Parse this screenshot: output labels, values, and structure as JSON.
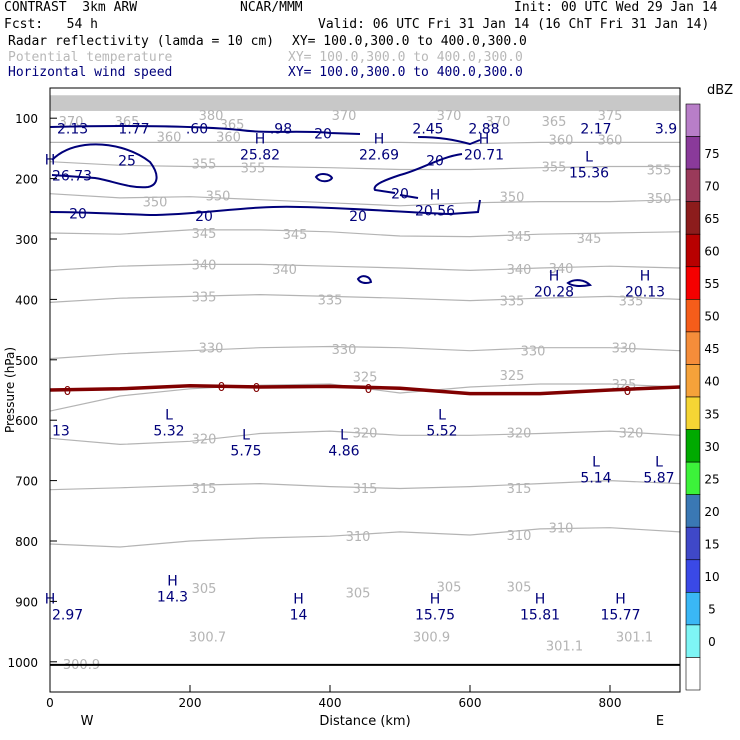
{
  "header": {
    "title_left": "CONTRAST  3km ARW",
    "title_mid": "NCAR/MMM",
    "init": "Init: 00 UTC Wed 29 Jan 14",
    "fcst": "Fcst:   54 h",
    "valid": "Valid: 06 UTC Fri 31 Jan 14 (16 ChT Fri 31 Jan 14)",
    "field1": "Radar reflectivity (lamda = 10 cm)",
    "field1_xy": "XY= 100.0,300.0 to 400.0,300.0",
    "field2": "Potential temperature",
    "field2_xy": "XY= 100.0,300.0 to 400.0,300.0",
    "field3": "Horizontal wind speed",
    "field3_xy": "XY= 100.0,300.0 to 400.0,300.0"
  },
  "colors": {
    "theta": "#b4b4b4",
    "wind": "#00007a",
    "freezing": "#800000",
    "terrain": "#000000"
  },
  "chart_data": {
    "type": "cross-section",
    "xlabel": "Distance (km)",
    "ylabel": "Pressure (hPa)",
    "xlim": [
      0,
      900
    ],
    "ylim": [
      1050,
      50
    ],
    "x_ticks": [
      0,
      200,
      400,
      600,
      800
    ],
    "y_ticks": [
      100,
      200,
      300,
      400,
      500,
      600,
      700,
      800,
      900,
      1000
    ],
    "west_label": "W",
    "east_label": "E",
    "colorbar": {
      "unit": "dBZ",
      "levels": [
        0,
        5,
        10,
        15,
        20,
        25,
        30,
        35,
        40,
        45,
        50,
        55,
        60,
        65,
        70,
        75
      ],
      "colors": [
        "#ffffff",
        "#7ef5f5",
        "#3ab7f5",
        "#3a49e6",
        "#3f48c8",
        "#3a78b4",
        "#3cf23a",
        "#00aa00",
        "#f5d534",
        "#f5a23a",
        "#f58d3a",
        "#f55d1a",
        "#f50000",
        "#b80000",
        "#8c1c1c",
        "#9a3a5a",
        "#8a3a9a",
        "#b87ec8"
      ]
    },
    "theta_contours": [
      {
        "label": "310",
        "p": [
          805,
          810,
          800,
          795,
          792,
          785,
          790,
          780,
          778,
          785
        ]
      },
      {
        "label": "315",
        "p": [
          715,
          712,
          708,
          705,
          710,
          713,
          710,
          705,
          700,
          705
        ]
      },
      {
        "label": "320",
        "p": [
          630,
          640,
          635,
          622,
          618,
          625,
          625,
          622,
          618,
          625
        ]
      },
      {
        "label": "325",
        "p": [
          585,
          560,
          548,
          542,
          540,
          555,
          545,
          540,
          540,
          545
        ]
      },
      {
        "label": "330",
        "p": [
          498,
          490,
          485,
          480,
          478,
          480,
          485,
          480,
          480,
          485
        ]
      },
      {
        "label": "335",
        "p": [
          405,
          398,
          395,
          392,
          395,
          398,
          402,
          398,
          395,
          400
        ]
      },
      {
        "label": "340",
        "p": [
          352,
          345,
          342,
          342,
          345,
          348,
          352,
          348,
          345,
          348
        ]
      },
      {
        "label": "345",
        "p": [
          290,
          292,
          285,
          285,
          288,
          295,
          296,
          292,
          290,
          288
        ]
      },
      {
        "label": "350",
        "p": [
          225,
          232,
          230,
          235,
          240,
          245,
          240,
          238,
          238,
          235
        ]
      },
      {
        "label": "355",
        "p": [
          172,
          178,
          180,
          180,
          182,
          185,
          185,
          182,
          180,
          180
        ]
      },
      {
        "label": "360",
        "p": [
          140,
          140,
          140,
          140,
          140,
          140,
          142,
          140,
          140,
          140
        ]
      }
    ],
    "theta_labels": [
      {
        "x": 30,
        "p": 105,
        "t": "370"
      },
      {
        "x": 110,
        "p": 105,
        "t": "365"
      },
      {
        "x": 230,
        "p": 95,
        "t": "380"
      },
      {
        "x": 260,
        "p": 110,
        "t": "365"
      },
      {
        "x": 420,
        "p": 95,
        "t": "370"
      },
      {
        "x": 570,
        "p": 95,
        "t": "370"
      },
      {
        "x": 640,
        "p": 105,
        "t": "370"
      },
      {
        "x": 720,
        "p": 105,
        "t": "365"
      },
      {
        "x": 800,
        "p": 95,
        "t": "375"
      },
      {
        "x": 170,
        "p": 130,
        "t": "360"
      },
      {
        "x": 255,
        "p": 130,
        "t": "360"
      },
      {
        "x": 730,
        "p": 135,
        "t": "360"
      },
      {
        "x": 800,
        "p": 135,
        "t": "360"
      },
      {
        "x": 220,
        "p": 175,
        "t": "355"
      },
      {
        "x": 290,
        "p": 182,
        "t": "355"
      },
      {
        "x": 720,
        "p": 180,
        "t": "355"
      },
      {
        "x": 870,
        "p": 185,
        "t": "355"
      },
      {
        "x": 150,
        "p": 238,
        "t": "350"
      },
      {
        "x": 240,
        "p": 228,
        "t": "350"
      },
      {
        "x": 660,
        "p": 230,
        "t": "350"
      },
      {
        "x": 870,
        "p": 232,
        "t": "350"
      },
      {
        "x": 220,
        "p": 290,
        "t": "345"
      },
      {
        "x": 350,
        "p": 292,
        "t": "345"
      },
      {
        "x": 670,
        "p": 295,
        "t": "345"
      },
      {
        "x": 770,
        "p": 298,
        "t": "345"
      },
      {
        "x": 220,
        "p": 342,
        "t": "340"
      },
      {
        "x": 335,
        "p": 350,
        "t": "340"
      },
      {
        "x": 670,
        "p": 350,
        "t": "340"
      },
      {
        "x": 730,
        "p": 348,
        "t": "340"
      },
      {
        "x": 220,
        "p": 395,
        "t": "335"
      },
      {
        "x": 400,
        "p": 400,
        "t": "335"
      },
      {
        "x": 660,
        "p": 402,
        "t": "335"
      },
      {
        "x": 830,
        "p": 402,
        "t": "335"
      },
      {
        "x": 230,
        "p": 480,
        "t": "330"
      },
      {
        "x": 420,
        "p": 482,
        "t": "330"
      },
      {
        "x": 690,
        "p": 485,
        "t": "330"
      },
      {
        "x": 820,
        "p": 480,
        "t": "330"
      },
      {
        "x": 450,
        "p": 528,
        "t": "325"
      },
      {
        "x": 660,
        "p": 525,
        "t": "325"
      },
      {
        "x": 820,
        "p": 540,
        "t": "325"
      },
      {
        "x": 220,
        "p": 630,
        "t": "320"
      },
      {
        "x": 450,
        "p": 620,
        "t": "320"
      },
      {
        "x": 670,
        "p": 620,
        "t": "320"
      },
      {
        "x": 830,
        "p": 620,
        "t": "320"
      },
      {
        "x": 220,
        "p": 712,
        "t": "315"
      },
      {
        "x": 450,
        "p": 712,
        "t": "315"
      },
      {
        "x": 670,
        "p": 712,
        "t": "315"
      },
      {
        "x": 440,
        "p": 792,
        "t": "310"
      },
      {
        "x": 670,
        "p": 790,
        "t": "310"
      },
      {
        "x": 730,
        "p": 778,
        "t": "310"
      },
      {
        "x": 220,
        "p": 878,
        "t": "305"
      },
      {
        "x": 440,
        "p": 885,
        "t": "305"
      },
      {
        "x": 570,
        "p": 875,
        "t": "305"
      },
      {
        "x": 670,
        "p": 875,
        "t": "305"
      }
    ],
    "wind_labels": [
      {
        "x": 110,
        "p": 170,
        "t": "25"
      },
      {
        "x": 390,
        "p": 125,
        "t": "20"
      },
      {
        "x": 550,
        "p": 170,
        "t": "20"
      },
      {
        "x": 500,
        "p": 225,
        "t": "20"
      },
      {
        "x": 40,
        "p": 258,
        "t": "20"
      },
      {
        "x": 220,
        "p": 262,
        "t": "20"
      },
      {
        "x": 440,
        "p": 262,
        "t": "20"
      }
    ],
    "wind_extrema": [
      {
        "x": 10,
        "p": 112,
        "t": "2.13",
        "type": ""
      },
      {
        "x": 120,
        "p": 112,
        "t": "1.77",
        "type": ""
      },
      {
        "x": 210,
        "p": 112,
        "t": ".60",
        "type": ""
      },
      {
        "x": 330,
        "p": 112,
        "t": ".98",
        "type": ""
      },
      {
        "x": 540,
        "p": 112,
        "t": "2.45",
        "type": ""
      },
      {
        "x": 620,
        "p": 112,
        "t": "2.88",
        "type": ""
      },
      {
        "x": 780,
        "p": 112,
        "t": "2.17",
        "type": ""
      },
      {
        "x": 880,
        "p": 112,
        "t": "3.9",
        "type": ""
      },
      {
        "x": 300,
        "p": 155,
        "t": "25.82",
        "type": "H"
      },
      {
        "x": 470,
        "p": 155,
        "t": "22.69",
        "type": "H"
      },
      {
        "x": 620,
        "p": 155,
        "t": "20.71",
        "type": "H"
      },
      {
        "x": 770,
        "p": 185,
        "t": "15.36",
        "type": "L"
      },
      {
        "x": 0,
        "p": 190,
        "t": "26.73",
        "type": "H"
      },
      {
        "x": 550,
        "p": 248,
        "t": "20.56",
        "type": "H"
      },
      {
        "x": 720,
        "p": 382,
        "t": "20.28",
        "type": "H"
      },
      {
        "x": 850,
        "p": 382,
        "t": "20.13",
        "type": "H"
      },
      {
        "x": 170,
        "p": 612,
        "t": "5.32",
        "type": "L"
      },
      {
        "x": 0,
        "p": 612,
        "t": "13",
        "type": ""
      },
      {
        "x": 280,
        "p": 645,
        "t": "5.75",
        "type": "L"
      },
      {
        "x": 420,
        "p": 645,
        "t": "4.86",
        "type": "L"
      },
      {
        "x": 560,
        "p": 612,
        "t": "5.52",
        "type": "L"
      },
      {
        "x": 780,
        "p": 690,
        "t": "5.14",
        "type": "L"
      },
      {
        "x": 870,
        "p": 690,
        "t": "5.87",
        "type": "L"
      },
      {
        "x": 175,
        "p": 887,
        "t": "14.3",
        "type": "H"
      },
      {
        "x": 0,
        "p": 917,
        "t": "2.97",
        "type": "H"
      },
      {
        "x": 355,
        "p": 917,
        "t": "14",
        "type": "H"
      },
      {
        "x": 550,
        "p": 917,
        "t": "15.75",
        "type": "H"
      },
      {
        "x": 700,
        "p": 917,
        "t": "15.81",
        "type": "H"
      },
      {
        "x": 815,
        "p": 917,
        "t": "15.77",
        "type": "H"
      }
    ],
    "theta_extrema": [
      {
        "x": 225,
        "p": 960,
        "t": "300.7"
      },
      {
        "x": 545,
        "p": 960,
        "t": "300.9"
      },
      {
        "x": 735,
        "p": 975,
        "t": "301.1"
      },
      {
        "x": 835,
        "p": 960,
        "t": "301.1"
      },
      {
        "x": 45,
        "p": 1005,
        "t": "300.9"
      }
    ],
    "freezing_level": {
      "label": "0",
      "x": [
        0,
        100,
        200,
        300,
        400,
        500,
        600,
        700,
        800,
        900
      ],
      "p": [
        550,
        548,
        543,
        545,
        544,
        547,
        556,
        556,
        550,
        545
      ],
      "label_x": [
        25,
        245,
        295,
        455,
        825
      ]
    }
  }
}
